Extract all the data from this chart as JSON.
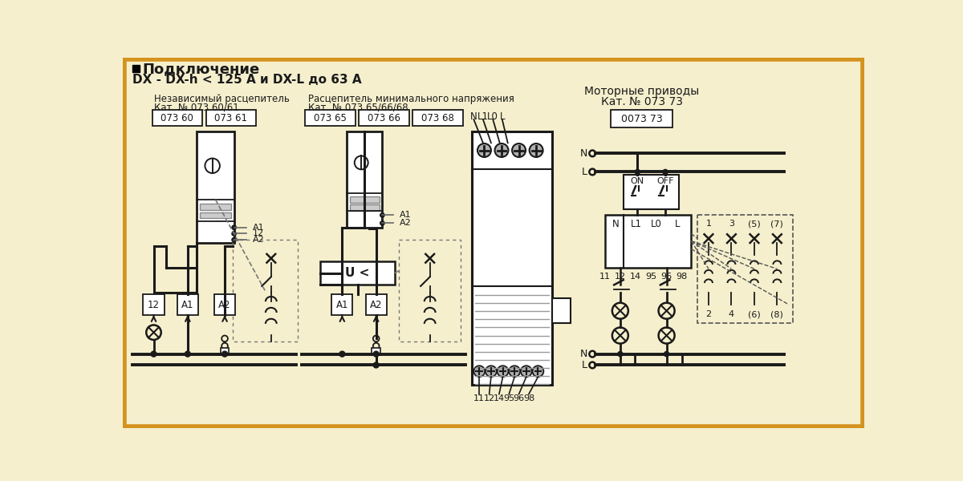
{
  "bg_color": "#f5efcd",
  "border_color": "#d4921e",
  "line_color": "#1a1a1a",
  "box_fill": "#ffffff",
  "text_color": "#1a1a1a",
  "title1": "■ Подключение",
  "title2": "DX - DX-h < 125 А и DX-L до 63 А",
  "sect1_line1": "Независимый расцепитель",
  "sect1_line2": "Кат. № 073 60/61",
  "sect2_line1": "Расцепитель минимального напряжения",
  "sect2_line2": "Кат. № 073 65/66/68",
  "sect3_line1": "Моторные приводы",
  "sect3_line2": "Кат. № 073 73"
}
